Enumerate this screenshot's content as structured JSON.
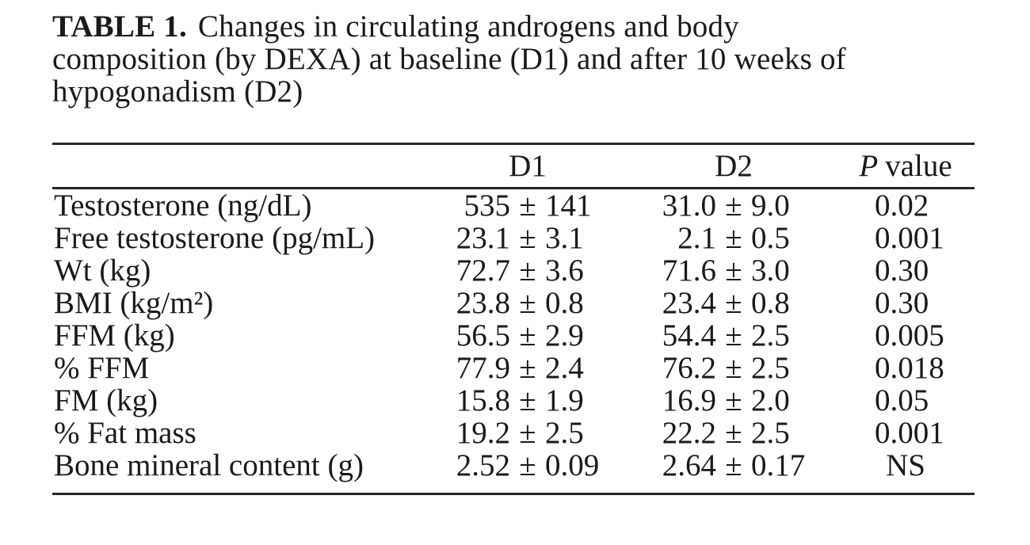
{
  "title": {
    "label": "TABLE 1.",
    "line1": "Changes in circulating androgens and body",
    "line2": "composition (by DEXA) at baseline (D1) and after 10 weeks of",
    "line3": "hypogonadism (D2)"
  },
  "table": {
    "header": {
      "metric": "",
      "d1": "D1",
      "d2": "D2",
      "p_italic": "P",
      "p_rest": "value"
    },
    "rows": [
      {
        "label": "Testosterone (ng/dL)",
        "d1": "535 ± 141",
        "d2": "31.0 ± 9.0",
        "p": "0.02"
      },
      {
        "label": "Free testosterone (pg/mL)",
        "d1": "23.1 ± 3.1",
        "d2": "2.1 ± 0.5",
        "p": "0.001"
      },
      {
        "label": "Wt (kg)",
        "d1": "72.7 ± 3.6",
        "d2": "71.6 ± 3.0",
        "p": "0.30"
      },
      {
        "label": "BMI (kg/m²)",
        "d1": "23.8 ± 0.8",
        "d2": "23.4 ± 0.8",
        "p": "0.30"
      },
      {
        "label": "FFM (kg)",
        "d1": "56.5 ± 2.9",
        "d2": "54.4 ± 2.5",
        "p": "0.005"
      },
      {
        "label": "% FFM",
        "d1": "77.9 ± 2.4",
        "d2": "76.2 ± 2.5",
        "p": "0.018"
      },
      {
        "label": "FM (kg)",
        "d1": "15.8 ± 1.9",
        "d2": "16.9 ± 2.0",
        "p": "0.05"
      },
      {
        "label": "% Fat mass",
        "d1": "19.2 ± 2.5",
        "d2": "22.2 ± 2.5",
        "p": "0.001"
      },
      {
        "label": "Bone mineral content (g)",
        "d1": "2.52 ± 0.09",
        "d2": "2.64 ± 0.17",
        "p": "NS"
      }
    ]
  },
  "colors": {
    "text": "#1a1a1a",
    "rule": "#262626",
    "background": "#ffffff"
  }
}
